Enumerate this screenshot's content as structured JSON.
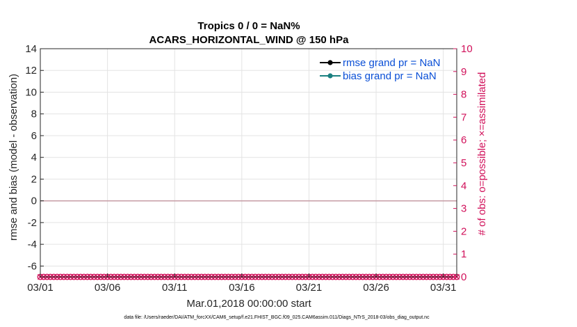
{
  "chart_data": {
    "type": "line",
    "title": "Tropics 0 / 0 = NaN%",
    "subtitle": "ACARS_HORIZONTAL_WIND @ 150 hPa",
    "xlabel": "Mar.01,2018 00:00:00 start",
    "ylabel": "rmse and bias (model - observation)",
    "ylabel_right": "# of obs: o=possible; ×=assimilated",
    "x_tick_labels": [
      "03/01",
      "03/06",
      "03/11",
      "03/16",
      "03/21",
      "03/26",
      "03/31"
    ],
    "x_tick_days": [
      0,
      5,
      10,
      15,
      20,
      25,
      30
    ],
    "xlim": [
      0,
      31
    ],
    "ylim": [
      -7,
      14
    ],
    "y_ticks": [
      -6,
      -4,
      -2,
      0,
      2,
      4,
      6,
      8,
      10,
      12,
      14
    ],
    "ylim_right": [
      0,
      10
    ],
    "y_ticks_right": [
      0,
      1,
      2,
      3,
      4,
      5,
      6,
      7,
      8,
      9,
      10
    ],
    "grid": true,
    "legend_position": "top-right",
    "zero_line": 0,
    "series": [
      {
        "name": "rmse grand pr = NaN",
        "color": "#000000",
        "values": []
      },
      {
        "name": "bias grand pr = NaN",
        "color": "#1a8080",
        "values": []
      },
      {
        "name": "obs possible",
        "axis": "right",
        "color": "#d1105a",
        "marker": "o",
        "x_start": 0,
        "x_step": 0.25,
        "count": 125,
        "value": 0
      },
      {
        "name": "obs assimilated",
        "axis": "right",
        "color": "#d1105a",
        "marker": "x",
        "x_start": 0,
        "x_step": 0.25,
        "count": 125,
        "value": 0
      }
    ],
    "footnote": "data file: /Users/raeder/DAI/ATM_forcXX/CAM6_setup/f.e21.FHIST_BGC.f09_025.CAM6assim.011/Diags_NTrS_2018-03/obs_diag_output.nc"
  }
}
